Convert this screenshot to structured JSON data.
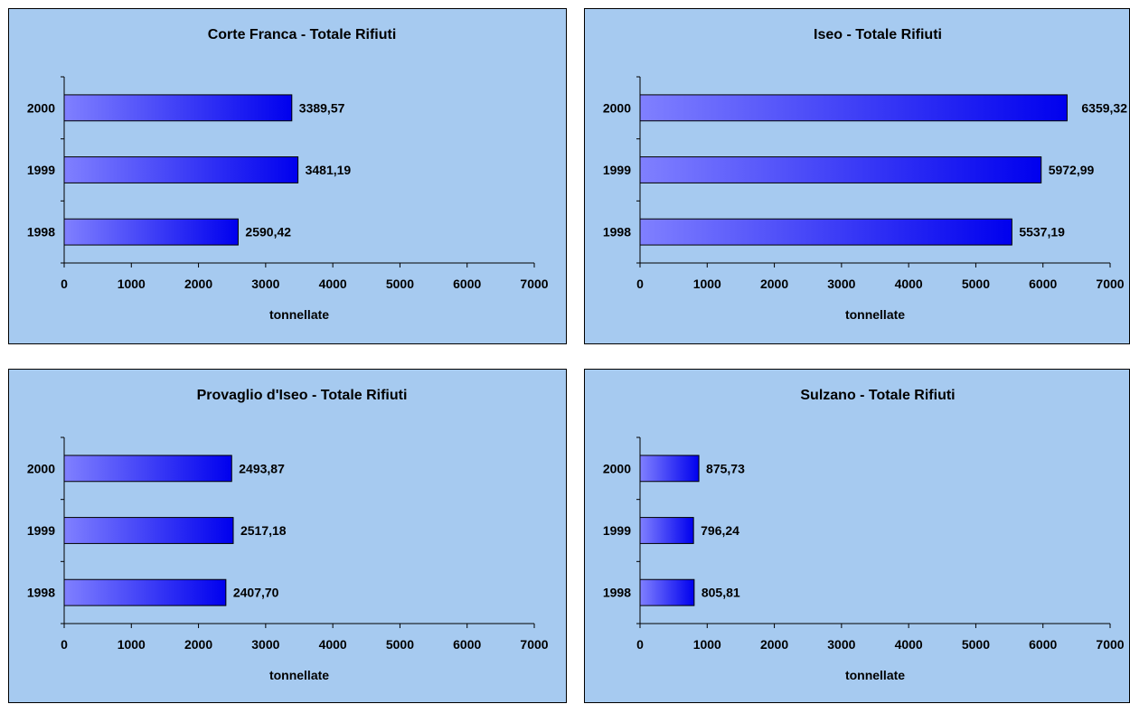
{
  "chart_data": [
    {
      "type": "bar",
      "orientation": "horizontal",
      "title": "Corte Franca - Totale Rifiuti",
      "xlabel": "tonnellate",
      "ylabel": "",
      "categories": [
        "2000",
        "1999",
        "1998"
      ],
      "values": [
        3389.57,
        3481.19,
        2590.42
      ],
      "value_labels": [
        "3389,57",
        "3481,19",
        "2590,42"
      ],
      "xlim": [
        0,
        7000
      ],
      "xticks": [
        "0",
        "1000",
        "2000",
        "3000",
        "4000",
        "5000",
        "6000",
        "7000"
      ],
      "grid": false,
      "legend": "none",
      "colors": {
        "bar_start": "#8080ff",
        "bar_end": "#0000ee",
        "background": "#a6caf0"
      }
    },
    {
      "type": "bar",
      "orientation": "horizontal",
      "title": "Iseo - Totale Rifiuti",
      "xlabel": "tonnellate",
      "ylabel": "",
      "categories": [
        "2000",
        "1999",
        "1998"
      ],
      "values": [
        6359.32,
        5972.99,
        5537.19
      ],
      "value_labels": [
        "6359,32",
        "5972,99",
        "5537,19"
      ],
      "xlim": [
        0,
        7000
      ],
      "xticks": [
        "0",
        "1000",
        "2000",
        "3000",
        "4000",
        "5000",
        "6000",
        "7000"
      ],
      "grid": false,
      "legend": "none",
      "colors": {
        "bar_start": "#8080ff",
        "bar_end": "#0000ee",
        "background": "#a6caf0"
      }
    },
    {
      "type": "bar",
      "orientation": "horizontal",
      "title": "Provaglio d'Iseo - Totale Rifiuti",
      "xlabel": "tonnellate",
      "ylabel": "",
      "categories": [
        "2000",
        "1999",
        "1998"
      ],
      "values": [
        2493.87,
        2517.18,
        2407.7
      ],
      "value_labels": [
        "2493,87",
        "2517,18",
        "2407,70"
      ],
      "xlim": [
        0,
        7000
      ],
      "xticks": [
        "0",
        "1000",
        "2000",
        "3000",
        "4000",
        "5000",
        "6000",
        "7000"
      ],
      "grid": false,
      "legend": "none",
      "colors": {
        "bar_start": "#8080ff",
        "bar_end": "#0000ee",
        "background": "#a6caf0"
      }
    },
    {
      "type": "bar",
      "orientation": "horizontal",
      "title": "Sulzano - Totale Rifiuti",
      "xlabel": "tonnellate",
      "ylabel": "",
      "categories": [
        "2000",
        "1999",
        "1998"
      ],
      "values": [
        875.73,
        796.24,
        805.81
      ],
      "value_labels": [
        "875,73",
        "796,24",
        "805,81"
      ],
      "xlim": [
        0,
        7000
      ],
      "xticks": [
        "0",
        "1000",
        "2000",
        "3000",
        "4000",
        "5000",
        "6000",
        "7000"
      ],
      "grid": false,
      "legend": "none",
      "colors": {
        "bar_start": "#8080ff",
        "bar_end": "#0000ee",
        "background": "#a6caf0"
      }
    }
  ]
}
